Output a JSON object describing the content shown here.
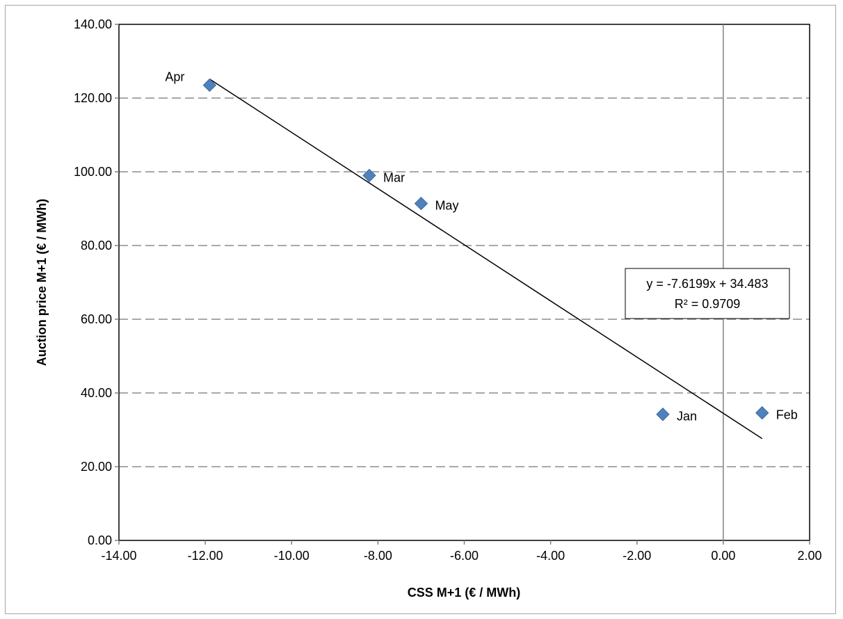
{
  "chart_data": {
    "type": "scatter",
    "xlabel": "CSS M+1 (€ / MWh)",
    "ylabel": "Auction price M+1 (€ / MWh)",
    "xlim": [
      -14,
      2
    ],
    "ylim": [
      0,
      140
    ],
    "x_ticks": [
      -14,
      -12,
      -10,
      -8,
      -6,
      -4,
      -2,
      0,
      2
    ],
    "y_ticks": [
      0,
      20,
      40,
      60,
      80,
      100,
      120,
      140
    ],
    "x_tick_labels": [
      "-14.00",
      "-12.00",
      "-10.00",
      "-8.00",
      "-6.00",
      "-4.00",
      "-2.00",
      "0.00",
      "2.00"
    ],
    "y_tick_labels": [
      "0.00",
      "20.00",
      "40.00",
      "60.00",
      "80.00",
      "100.00",
      "120.00",
      "140.00"
    ],
    "grid": "horizontal dashed",
    "points": [
      {
        "label": "Jan",
        "x": -1.4,
        "y": 34.2
      },
      {
        "label": "Feb",
        "x": 0.9,
        "y": 34.6
      },
      {
        "label": "Mar",
        "x": -8.2,
        "y": 99.0
      },
      {
        "label": "Apr",
        "x": -11.9,
        "y": 123.5
      },
      {
        "label": "May",
        "x": -7.0,
        "y": 91.4
      }
    ],
    "trendline": {
      "slope": -7.6199,
      "intercept": 34.483,
      "x_range": [
        -11.9,
        0.9
      ],
      "equation": "y = -7.6199x + 34.483",
      "r_squared": "R² = 0.9709"
    },
    "colors": {
      "marker": "#4f81bd",
      "grid": "#8c8c8c",
      "axis": "#808080"
    }
  }
}
